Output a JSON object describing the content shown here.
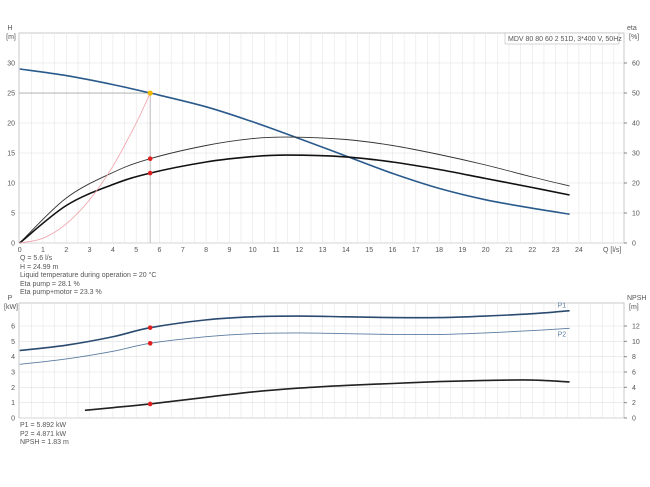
{
  "chart_data": [
    {
      "type": "line",
      "title": "MDV 80 80 60 2 51D, 3*400 V, 50Hz",
      "xlabel": "Q [l/s]",
      "ylabel": "H [m]",
      "y2label": "eta [%]",
      "y_axis_title": "H",
      "y_axis_unit": "[m]",
      "y2_axis_title": "eta",
      "y2_axis_unit": "[%]",
      "x_axis_title": "Q [l/s]",
      "xlim": [
        0,
        26
      ],
      "ylim": [
        0,
        35
      ],
      "y2lim": [
        0,
        70
      ],
      "xticks": [
        0,
        1,
        2,
        3,
        4,
        5,
        6,
        7,
        8,
        9,
        10,
        11,
        12,
        13,
        14,
        15,
        16,
        17,
        18,
        19,
        20,
        21,
        22,
        23,
        24
      ],
      "yticks": [
        0,
        5,
        10,
        15,
        20,
        25,
        30
      ],
      "y2ticks": [
        0,
        10,
        20,
        30,
        40,
        50,
        60
      ],
      "series": [
        {
          "name": "H",
          "axis": "y",
          "color": "#2a5a8c",
          "x": [
            0,
            2,
            4,
            5.6,
            8,
            10,
            12,
            14,
            16,
            18,
            20,
            22,
            23.6
          ],
          "y": [
            29,
            27.9,
            26.4,
            25,
            22.7,
            20.2,
            17.4,
            14.5,
            11.6,
            9.1,
            7.2,
            5.8,
            4.8
          ]
        },
        {
          "name": "Eta pump",
          "axis": "y2",
          "color": "#333",
          "x": [
            0,
            2,
            4,
            5.6,
            8,
            10,
            11.5,
            14,
            16,
            18,
            20,
            22,
            23.6
          ],
          "y": [
            0,
            15,
            23.5,
            28.1,
            32.5,
            34.8,
            35.3,
            34.5,
            32.5,
            29.5,
            26,
            22,
            19
          ]
        },
        {
          "name": "Eta pump+motor",
          "axis": "y2",
          "color": "#111",
          "x": [
            0,
            2,
            4,
            5.6,
            8,
            10,
            11.5,
            14,
            16,
            18,
            20,
            22,
            23.6
          ],
          "y": [
            0,
            12.5,
            19.5,
            23.3,
            27,
            28.8,
            29.3,
            28.7,
            27,
            24.5,
            21.5,
            18.5,
            16
          ]
        },
        {
          "name": "System curve",
          "axis": "y",
          "color": "#f0a0a8",
          "x": [
            0,
            1,
            2,
            3,
            4,
            5,
            5.6
          ],
          "y": [
            0,
            0.8,
            3.2,
            7.2,
            12.8,
            20,
            24.99
          ]
        }
      ],
      "operating_point": {
        "Q": 5.6,
        "H": 24.99,
        "eta_pump": 28.1,
        "eta_total": 23.3
      }
    },
    {
      "type": "line",
      "xlabel": "",
      "ylabel": "P [kW]",
      "y2label": "NPSH [m]",
      "y_axis_title": "P",
      "y_axis_unit": "[kW]",
      "y2_axis_title": "NPSH",
      "y2_axis_unit": "[m]",
      "xlim": [
        0,
        26
      ],
      "ylim": [
        0,
        7.5
      ],
      "y2lim": [
        0,
        15
      ],
      "yticks": [
        0,
        1,
        2,
        3,
        4,
        5,
        6
      ],
      "y2ticks": [
        0,
        2,
        4,
        6,
        8,
        10,
        12
      ],
      "series": [
        {
          "name": "P1",
          "axis": "y",
          "color": "#2a4a70",
          "x": [
            0,
            2,
            4,
            5.6,
            8,
            10,
            12,
            14,
            16,
            18,
            20,
            22,
            23.6
          ],
          "y": [
            4.4,
            4.75,
            5.3,
            5.89,
            6.4,
            6.6,
            6.65,
            6.6,
            6.55,
            6.55,
            6.65,
            6.8,
            7.0
          ]
        },
        {
          "name": "P2",
          "axis": "y",
          "color": "#5a7ca0",
          "x": [
            0,
            2,
            4,
            5.6,
            8,
            10,
            12,
            14,
            16,
            18,
            20,
            22,
            23.6
          ],
          "y": [
            3.5,
            3.85,
            4.35,
            4.87,
            5.3,
            5.5,
            5.55,
            5.5,
            5.45,
            5.45,
            5.55,
            5.7,
            5.85
          ]
        },
        {
          "name": "NPSH",
          "axis": "y2",
          "color": "#222",
          "x": [
            2.8,
            4,
            5.6,
            8,
            10,
            12,
            14,
            16,
            18,
            20,
            22,
            23.6
          ],
          "y": [
            1.0,
            1.35,
            1.83,
            2.7,
            3.4,
            3.9,
            4.25,
            4.5,
            4.75,
            4.9,
            4.95,
            4.7
          ]
        }
      ],
      "operating_point": {
        "Q": 5.6,
        "P1": 5.892,
        "P2": 4.871,
        "NPSH": 1.83
      }
    }
  ],
  "info_top": [
    "Q = 5.6 l/s",
    "H = 24.99 m",
    "Liquid temperature during operation = 20 °C",
    "Eta pump = 28.1 %",
    "Eta pump+motor = 23.3 %"
  ],
  "info_bottom": [
    "P1 = 5.892 kW",
    "P2 = 4.871 kW",
    "NPSH = 1.83 m"
  ],
  "labels": {
    "p1": "P1",
    "p2": "P2"
  }
}
